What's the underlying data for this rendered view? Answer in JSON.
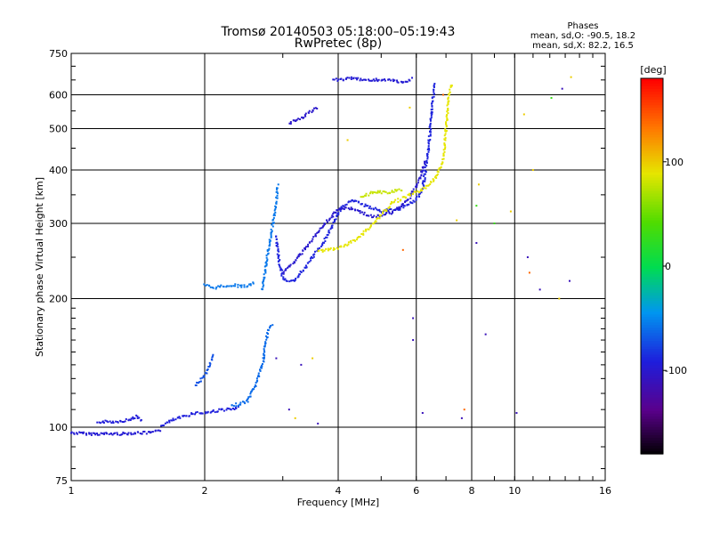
{
  "chart_data": {
    "type": "scatter",
    "title": "Tromsø 20140503 05:18:00–05:19:43",
    "subtitle": "RwPretec (8p)",
    "xlabel": "Frequency [MHz]",
    "ylabel": "Stationary phase Virtual Height [km]",
    "x_scale": "log",
    "y_scale": "log",
    "xlim": [
      1,
      16
    ],
    "ylim": [
      75,
      750
    ],
    "xticks": [
      1,
      2,
      4,
      6,
      8,
      10,
      16
    ],
    "xtick_labels": [
      "1",
      "2",
      "4",
      "6",
      "8",
      "10",
      "16"
    ],
    "yticks": [
      75,
      100,
      200,
      300,
      400,
      500,
      600,
      750
    ],
    "ytick_labels": [
      "75",
      "100",
      "200",
      "300",
      "400",
      "500",
      "600",
      "750"
    ],
    "grid": true,
    "phases_box": {
      "title": "Phases",
      "line1": "mean, sd,O: -90.5, 18.2",
      "line2": "mean, sd,X: 82.2, 16.5"
    },
    "colorbar": {
      "label": "[deg]",
      "range": [
        -180,
        180
      ],
      "ticks": [
        100,
        0,
        -100
      ],
      "tick_labels": [
        "100",
        "0",
        "-100"
      ]
    },
    "traces": [
      {
        "points": [
          [
            1.0,
            97
          ],
          [
            1.1,
            96.5
          ],
          [
            1.2,
            96.5
          ],
          [
            1.3,
            96.5
          ],
          [
            1.4,
            97
          ],
          [
            1.5,
            97
          ],
          [
            1.6,
            98
          ]
        ],
        "phase": -95
      },
      {
        "points": [
          [
            1.15,
            103
          ],
          [
            1.25,
            103
          ],
          [
            1.35,
            104
          ],
          [
            1.4,
            106
          ],
          [
            1.45,
            103
          ]
        ],
        "phase": -92
      },
      {
        "points": [
          [
            1.6,
            101
          ],
          [
            1.7,
            104
          ],
          [
            1.8,
            106
          ],
          [
            1.9,
            108
          ],
          [
            2.0,
            108
          ],
          [
            2.1,
            109
          ],
          [
            2.2,
            110
          ],
          [
            2.3,
            110
          ],
          [
            2.4,
            111
          ]
        ],
        "phase": -90
      },
      {
        "points": [
          [
            2.3,
            112
          ],
          [
            2.5,
            115
          ],
          [
            2.6,
            125
          ],
          [
            2.7,
            140
          ],
          [
            2.75,
            160
          ],
          [
            2.8,
            170
          ],
          [
            2.85,
            175
          ]
        ],
        "phase": -60
      },
      {
        "points": [
          [
            1.9,
            125
          ],
          [
            2.0,
            132
          ],
          [
            2.05,
            140
          ],
          [
            2.1,
            148
          ]
        ],
        "phase": -70
      },
      {
        "points": [
          [
            2.0,
            215
          ],
          [
            2.1,
            212
          ],
          [
            2.2,
            214
          ],
          [
            2.3,
            215
          ],
          [
            2.4,
            214
          ],
          [
            2.5,
            214
          ],
          [
            2.6,
            218
          ]
        ],
        "phase": -55
      },
      {
        "points": [
          [
            2.7,
            210
          ],
          [
            2.75,
            240
          ],
          [
            2.8,
            270
          ],
          [
            2.85,
            300
          ],
          [
            2.9,
            330
          ],
          [
            2.92,
            370
          ]
        ],
        "phase": -55
      },
      {
        "points": [
          [
            2.9,
            280
          ],
          [
            2.95,
            240
          ],
          [
            3.0,
            225
          ],
          [
            3.1,
            218
          ],
          [
            3.2,
            222
          ],
          [
            3.3,
            230
          ],
          [
            3.5,
            250
          ],
          [
            3.7,
            270
          ],
          [
            3.9,
            300
          ],
          [
            4.1,
            330
          ],
          [
            4.3,
            340
          ],
          [
            4.6,
            330
          ],
          [
            5.0,
            320
          ],
          [
            5.5,
            325
          ],
          [
            6.0,
            340
          ],
          [
            6.2,
            360
          ],
          [
            6.4,
            450
          ],
          [
            6.5,
            550
          ],
          [
            6.6,
            640
          ]
        ],
        "phase": -88
      },
      {
        "points": [
          [
            3.0,
            230
          ],
          [
            3.2,
            245
          ],
          [
            3.4,
            265
          ],
          [
            3.6,
            285
          ],
          [
            3.8,
            305
          ],
          [
            4.0,
            325
          ],
          [
            4.3,
            325
          ],
          [
            4.8,
            310
          ],
          [
            5.3,
            318
          ],
          [
            5.8,
            345
          ],
          [
            6.1,
            380
          ],
          [
            6.3,
            420
          ]
        ],
        "phase": -98
      },
      {
        "points": [
          [
            3.1,
            515
          ],
          [
            3.3,
            530
          ],
          [
            3.5,
            550
          ],
          [
            3.6,
            560
          ]
        ],
        "phase": -100
      },
      {
        "points": [
          [
            3.9,
            650
          ],
          [
            4.3,
            655
          ],
          [
            4.7,
            650
          ],
          [
            5.2,
            650
          ],
          [
            5.6,
            640
          ],
          [
            5.9,
            655
          ]
        ],
        "phase": -95
      },
      {
        "points": [
          [
            3.6,
            258
          ],
          [
            4.0,
            262
          ],
          [
            4.4,
            275
          ],
          [
            4.8,
            300
          ],
          [
            5.3,
            335
          ],
          [
            5.8,
            350
          ],
          [
            6.2,
            360
          ],
          [
            6.6,
            380
          ],
          [
            6.9,
            420
          ],
          [
            7.0,
            500
          ],
          [
            7.1,
            590
          ],
          [
            7.2,
            640
          ]
        ],
        "phase": 90
      },
      {
        "points": [
          [
            4.5,
            345
          ],
          [
            4.8,
            355
          ],
          [
            5.2,
            355
          ],
          [
            5.6,
            360
          ]
        ],
        "phase": 80
      },
      {
        "points": [
          [
            2.9,
            145
          ],
          [
            3.1,
            110
          ],
          [
            3.3,
            140
          ],
          [
            3.6,
            102
          ],
          [
            5.9,
            180
          ],
          [
            5.9,
            160
          ],
          [
            6.2,
            108
          ],
          [
            7.6,
            105
          ],
          [
            8.6,
            165
          ],
          [
            10.1,
            108
          ],
          [
            10.7,
            250
          ],
          [
            11.4,
            210
          ],
          [
            12.8,
            620
          ],
          [
            13.3,
            220
          ],
          [
            8.2,
            270
          ]
        ],
        "phase": -110
      },
      {
        "points": [
          [
            3.2,
            105
          ],
          [
            3.5,
            145
          ],
          [
            4.2,
            470
          ],
          [
            5.8,
            560
          ],
          [
            7.4,
            305
          ],
          [
            8.3,
            370
          ],
          [
            9.8,
            320
          ],
          [
            10.5,
            540
          ],
          [
            11.0,
            400
          ],
          [
            12.6,
            200
          ],
          [
            13.4,
            660
          ]
        ],
        "phase": 100
      },
      {
        "points": [
          [
            10.8,
            230
          ],
          [
            5.6,
            260
          ],
          [
            7.7,
            110
          ],
          [
            6.9,
            600
          ]
        ],
        "phase": 140
      },
      {
        "points": [
          [
            8.2,
            330
          ],
          [
            9.0,
            300
          ],
          [
            12.1,
            590
          ]
        ],
        "phase": 30
      }
    ]
  }
}
